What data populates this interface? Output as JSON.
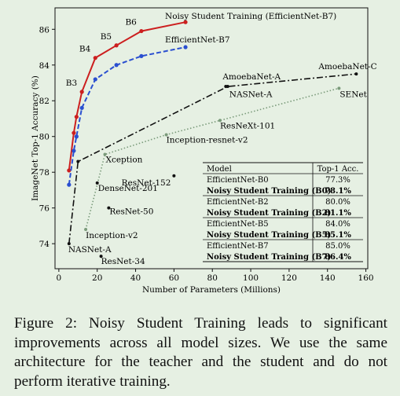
{
  "chart_data": {
    "type": "line",
    "xlabel": "Number of Parameters (Millions)",
    "ylabel": "ImageNet Top-1 Accuracy (%)",
    "xlim": [
      -2,
      161
    ],
    "ylim": [
      72.6,
      87.2
    ],
    "xticks": [
      "0",
      "20",
      "40",
      "60",
      "80",
      "100",
      "120",
      "140",
      "160"
    ],
    "xtick_values": [
      0,
      20,
      40,
      60,
      80,
      100,
      120,
      140,
      160
    ],
    "yticks": [
      "74",
      "76",
      "78",
      "80",
      "82",
      "84",
      "86"
    ],
    "ytick_values": [
      74,
      76,
      78,
      80,
      82,
      84,
      86
    ],
    "series": [
      {
        "name": "Noisy Student Training (EfficientNet-B7)",
        "color": "#cc1f1f",
        "style": "solid",
        "marker": "circle",
        "x": [
          5.3,
          7.8,
          9.2,
          12,
          19,
          30,
          43,
          66
        ],
        "y": [
          78.1,
          80.2,
          81.1,
          82.5,
          84.4,
          85.1,
          85.9,
          86.4
        ],
        "point_labels": [
          "",
          "",
          "",
          "B3",
          "B4",
          "B5",
          "B6",
          ""
        ]
      },
      {
        "name": "EfficientNet-B7",
        "color": "#2a4fd0",
        "style": "dashed",
        "marker": "circle",
        "x": [
          5.3,
          7.8,
          9.2,
          12,
          19,
          30,
          43,
          66
        ],
        "y": [
          77.3,
          79.2,
          80.0,
          81.6,
          83.2,
          84.0,
          84.5,
          85.0
        ]
      },
      {
        "color": "#111111",
        "style": "dashdot",
        "marker": "circle",
        "x": [
          5.3,
          10,
          88,
          155
        ],
        "y": [
          74.0,
          78.6,
          82.8,
          83.5
        ]
      },
      {
        "color": "#7a9a7a",
        "style": "dotted",
        "marker": "circle",
        "x": [
          14,
          24,
          56,
          84,
          146
        ],
        "y": [
          74.8,
          79.0,
          80.1,
          80.9,
          82.7
        ]
      }
    ],
    "annotations": [
      {
        "text": "Noisy Student Training (EfficientNet-B7)",
        "x": 66,
        "y": 86.4
      },
      {
        "text": "EfficientNet-B7",
        "x": 66,
        "y": 85.0
      },
      {
        "text": "AmoebaNet-A",
        "x": 87,
        "y": 82.8
      },
      {
        "text": "AmoebaNet-C",
        "x": 155,
        "y": 83.5
      },
      {
        "text": "NASNet-A",
        "x": 88,
        "y": 82.7
      },
      {
        "text": "SENet",
        "x": 146,
        "y": 82.7
      },
      {
        "text": "ResNeXt-101",
        "x": 84,
        "y": 80.9
      },
      {
        "text": "Inception-resnet-v2",
        "x": 56,
        "y": 80.1
      },
      {
        "text": "Xception",
        "x": 24,
        "y": 79.0
      },
      {
        "text": "DenseNet-201",
        "x": 20,
        "y": 77.4
      },
      {
        "text": "ResNet-152",
        "x": 60,
        "y": 77.8
      },
      {
        "text": "ResNet-50",
        "x": 26,
        "y": 76.0
      },
      {
        "text": "Inception-v2",
        "x": 14,
        "y": 74.8
      },
      {
        "text": "NASNet-A",
        "x": 5.3,
        "y": 74.0
      },
      {
        "text": "ResNet-34",
        "x": 22,
        "y": 73.3
      }
    ],
    "extra_points": [
      {
        "x": 20,
        "y": 77.4
      },
      {
        "x": 60,
        "y": 77.8
      },
      {
        "x": 26,
        "y": 76.0
      },
      {
        "x": 22,
        "y": 73.3
      },
      {
        "x": 87,
        "y": 82.8
      }
    ],
    "table": {
      "headers": [
        "Model",
        "Top-1 Acc."
      ],
      "rows": [
        {
          "model": "EfficientNet-B0",
          "acc": "77.3%",
          "bold": false
        },
        {
          "model": "Noisy Student Training (B0)",
          "acc": "78.1%",
          "bold": true
        },
        {
          "model": "EfficientNet-B2",
          "acc": "80.0%",
          "bold": false
        },
        {
          "model": "Noisy Student Training (B2)",
          "acc": "81.1%",
          "bold": true
        },
        {
          "model": "EfficientNet-B5",
          "acc": "84.0%",
          "bold": false
        },
        {
          "model": "Noisy Student Training (B5)",
          "acc": "85.1%",
          "bold": true
        },
        {
          "model": "EfficientNet-B7",
          "acc": "85.0%",
          "bold": false
        },
        {
          "model": "Noisy Student Training (B7)",
          "acc": "86.4%",
          "bold": true
        }
      ]
    },
    "grid": false,
    "legend": "none"
  },
  "caption": "Figure 2: Noisy Student Training leads to significant improvements across all model sizes. We use the same architecture for the teacher and the student and do not perform iterative training."
}
